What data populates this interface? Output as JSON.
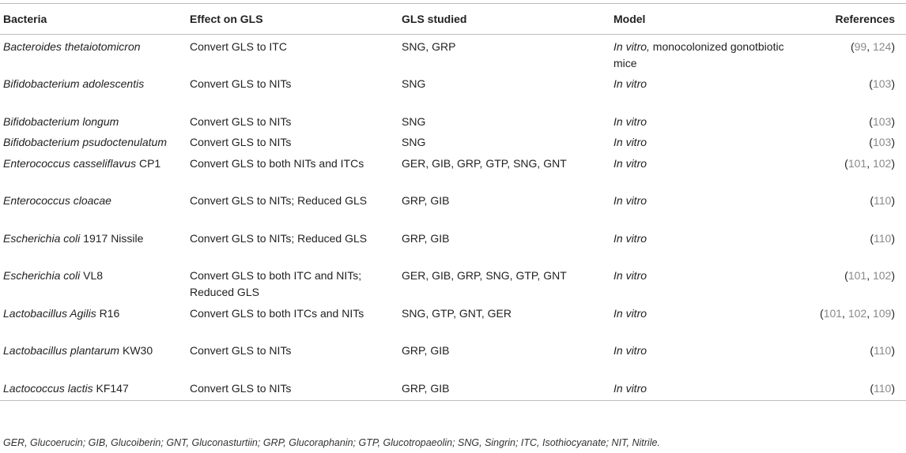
{
  "headers": {
    "bacteria": "Bacteria",
    "effect": "Effect on GLS",
    "gls": "GLS studied",
    "model": "Model",
    "references": "References"
  },
  "rows": [
    {
      "bacteria_italic": "Bacteroides thetaiotomicron",
      "bacteria_suffix": "",
      "effect": "Convert GLS to ITC",
      "gls": "SNG, GRP",
      "model_italic": "In vitro,",
      "model_plain": " monocolonized gonotbiotic mice",
      "refs": [
        "99",
        "124"
      ]
    },
    {
      "bacteria_italic": "Bifidobacterium adolescentis",
      "bacteria_suffix": "",
      "effect": "Convert GLS to NITs",
      "gls": "SNG",
      "model_italic": "In vitro",
      "model_plain": "",
      "refs": [
        "103"
      ]
    },
    {
      "bacteria_italic": "Bifidobacterium longum",
      "bacteria_suffix": "",
      "effect": "Convert GLS to NITs",
      "gls": "SNG",
      "model_italic": "In vitro",
      "model_plain": "",
      "refs": [
        "103"
      ]
    },
    {
      "bacteria_italic": "Bifidobacterium psudoctenulatum",
      "bacteria_suffix": "",
      "effect": "Convert GLS to NITs",
      "gls": "SNG",
      "model_italic": "In vitro",
      "model_plain": "",
      "refs": [
        "103"
      ]
    },
    {
      "bacteria_italic": "Enterococcus casseliflavus",
      "bacteria_suffix": " CP1",
      "effect": "Convert GLS to both NITs and ITCs",
      "gls": "GER, GIB, GRP, GTP, SNG, GNT",
      "model_italic": "In vitro",
      "model_plain": "",
      "refs": [
        "101",
        "102"
      ]
    },
    {
      "bacteria_italic": "Enterococcus cloacae",
      "bacteria_suffix": "",
      "effect": "Convert GLS to NITs; Reduced GLS",
      "gls": "GRP, GIB",
      "model_italic": "In vitro",
      "model_plain": "",
      "refs": [
        "110"
      ]
    },
    {
      "bacteria_italic": "Escherichia coli",
      "bacteria_suffix": " 1917 Nissile",
      "effect": "Convert GLS to NITs; Reduced GLS",
      "gls": "GRP, GIB",
      "model_italic": "In vitro",
      "model_plain": "",
      "refs": [
        "110"
      ]
    },
    {
      "bacteria_italic": "Escherichia coli",
      "bacteria_suffix": " VL8",
      "effect": "Convert GLS to both ITC and NITs; Reduced GLS",
      "gls": "GER, GIB, GRP, SNG, GTP, GNT",
      "model_italic": "In vitro",
      "model_plain": "",
      "refs": [
        "101",
        "102"
      ]
    },
    {
      "bacteria_italic": "Lactobacillus Agilis",
      "bacteria_suffix": " R16",
      "effect": "Convert GLS to both ITCs and NITs",
      "gls": "SNG, GTP, GNT, GER",
      "model_italic": "In vitro",
      "model_plain": "",
      "refs": [
        "101",
        "102",
        "109"
      ]
    },
    {
      "bacteria_italic": "Lactobacillus plantarum",
      "bacteria_suffix": " KW30",
      "effect": "Convert GLS to NITs",
      "gls": "GRP, GIB",
      "model_italic": "In vitro",
      "model_plain": "",
      "refs": [
        "110"
      ]
    },
    {
      "bacteria_italic": "Lactococcus lactis",
      "bacteria_suffix": " KF147",
      "effect": "Convert GLS to NITs",
      "gls": "GRP, GIB",
      "model_italic": "In vitro",
      "model_plain": "",
      "refs": [
        "110"
      ]
    }
  ],
  "footnote": "GER, Glucoerucin; GIB, Glucoiberin; GNT, Gluconasturtiin; GRP, Glucoraphanin; GTP, Glucotropaeolin; SNG, Singrin; ITC, Isothiocyanate; NIT, Nitrile."
}
